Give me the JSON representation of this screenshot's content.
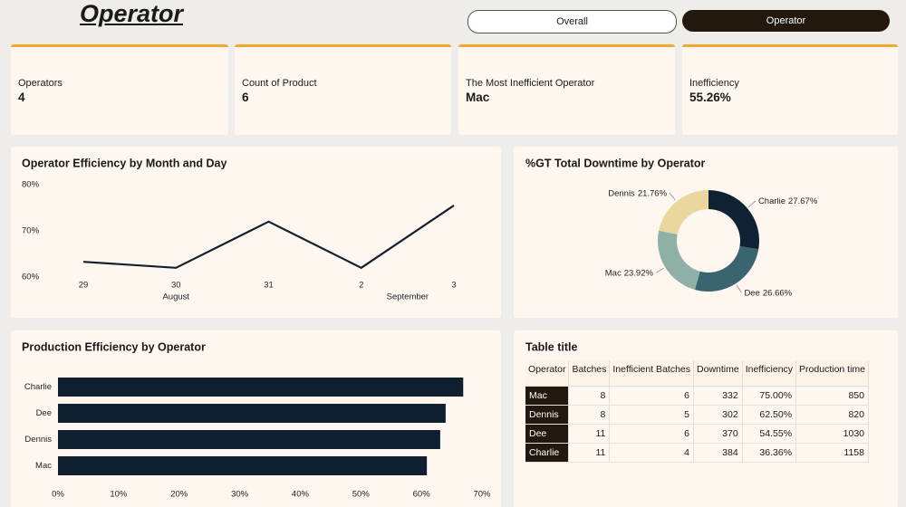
{
  "header": {
    "title": "Operator",
    "buttons": [
      "Overall",
      "Operator"
    ]
  },
  "kpis": [
    {
      "label": "Operators",
      "value": 4
    },
    {
      "label": "Count of Product",
      "value": 6
    },
    {
      "label": "The Most Inefficient Operator",
      "value": "Mac"
    },
    {
      "label": "Inefficiency",
      "value": "55.26%"
    }
  ],
  "chart_data": [
    {
      "type": "line",
      "title": "Operator Efficiency by Month and Day",
      "categories": [
        "29",
        "30",
        "31",
        "2",
        "3"
      ],
      "months": [
        "August",
        "August",
        "August",
        "September",
        "September"
      ],
      "values": [
        63.3,
        62.0,
        72.0,
        62.0,
        75.5
      ],
      "color": "#14202e",
      "ylim": [
        60,
        80
      ],
      "yticks": [
        {
          "value": 60,
          "label": "60%"
        },
        {
          "value": 70,
          "label": "70%"
        },
        {
          "value": 80,
          "label": "80%"
        }
      ]
    },
    {
      "type": "pie",
      "title": "%GT Total Downtime by Operator",
      "donut": true,
      "categories": [
        "Charlie",
        "Dee",
        "Mac",
        "Dennis"
      ],
      "values": [
        27.67,
        26.66,
        23.92,
        21.76
      ],
      "value_labels": [
        "27.67%",
        "26.66%",
        "23.92%",
        "21.76%"
      ],
      "colors": [
        "#0f2233",
        "#3a6470",
        "#8fb0a6",
        "#ead79e"
      ]
    },
    {
      "type": "hbar",
      "title": "Production Efficiency by Operator",
      "categories": [
        "Charlie",
        "Dee",
        "Dennis",
        "Mac"
      ],
      "values": [
        66.9,
        64.0,
        63.1,
        60.9
      ],
      "color": "#0f1f30",
      "xlim": [
        0,
        70
      ],
      "xticks": [
        {
          "value": 0,
          "label": "0%"
        },
        {
          "value": 10,
          "label": "10%"
        },
        {
          "value": 20,
          "label": "20%"
        },
        {
          "value": 30,
          "label": "30%"
        },
        {
          "value": 40,
          "label": "40%"
        },
        {
          "value": 50,
          "label": "50%"
        },
        {
          "value": 60,
          "label": "60%"
        },
        {
          "value": 70,
          "label": "70%"
        }
      ]
    }
  ],
  "table": {
    "title": "Table title",
    "columns": [
      "Operator",
      "Batches",
      "Inefficient Batches",
      "Downtime",
      "Inefficiency",
      "Production time"
    ],
    "rows": [
      [
        "Mac",
        8,
        6,
        332,
        "75.00%",
        850
      ],
      [
        "Dennis",
        8,
        5,
        302,
        "62.50%",
        820
      ],
      [
        "Dee",
        11,
        6,
        370,
        "54.55%",
        1030
      ],
      [
        "Charlie",
        11,
        4,
        384,
        "36.36%",
        1158
      ]
    ]
  }
}
